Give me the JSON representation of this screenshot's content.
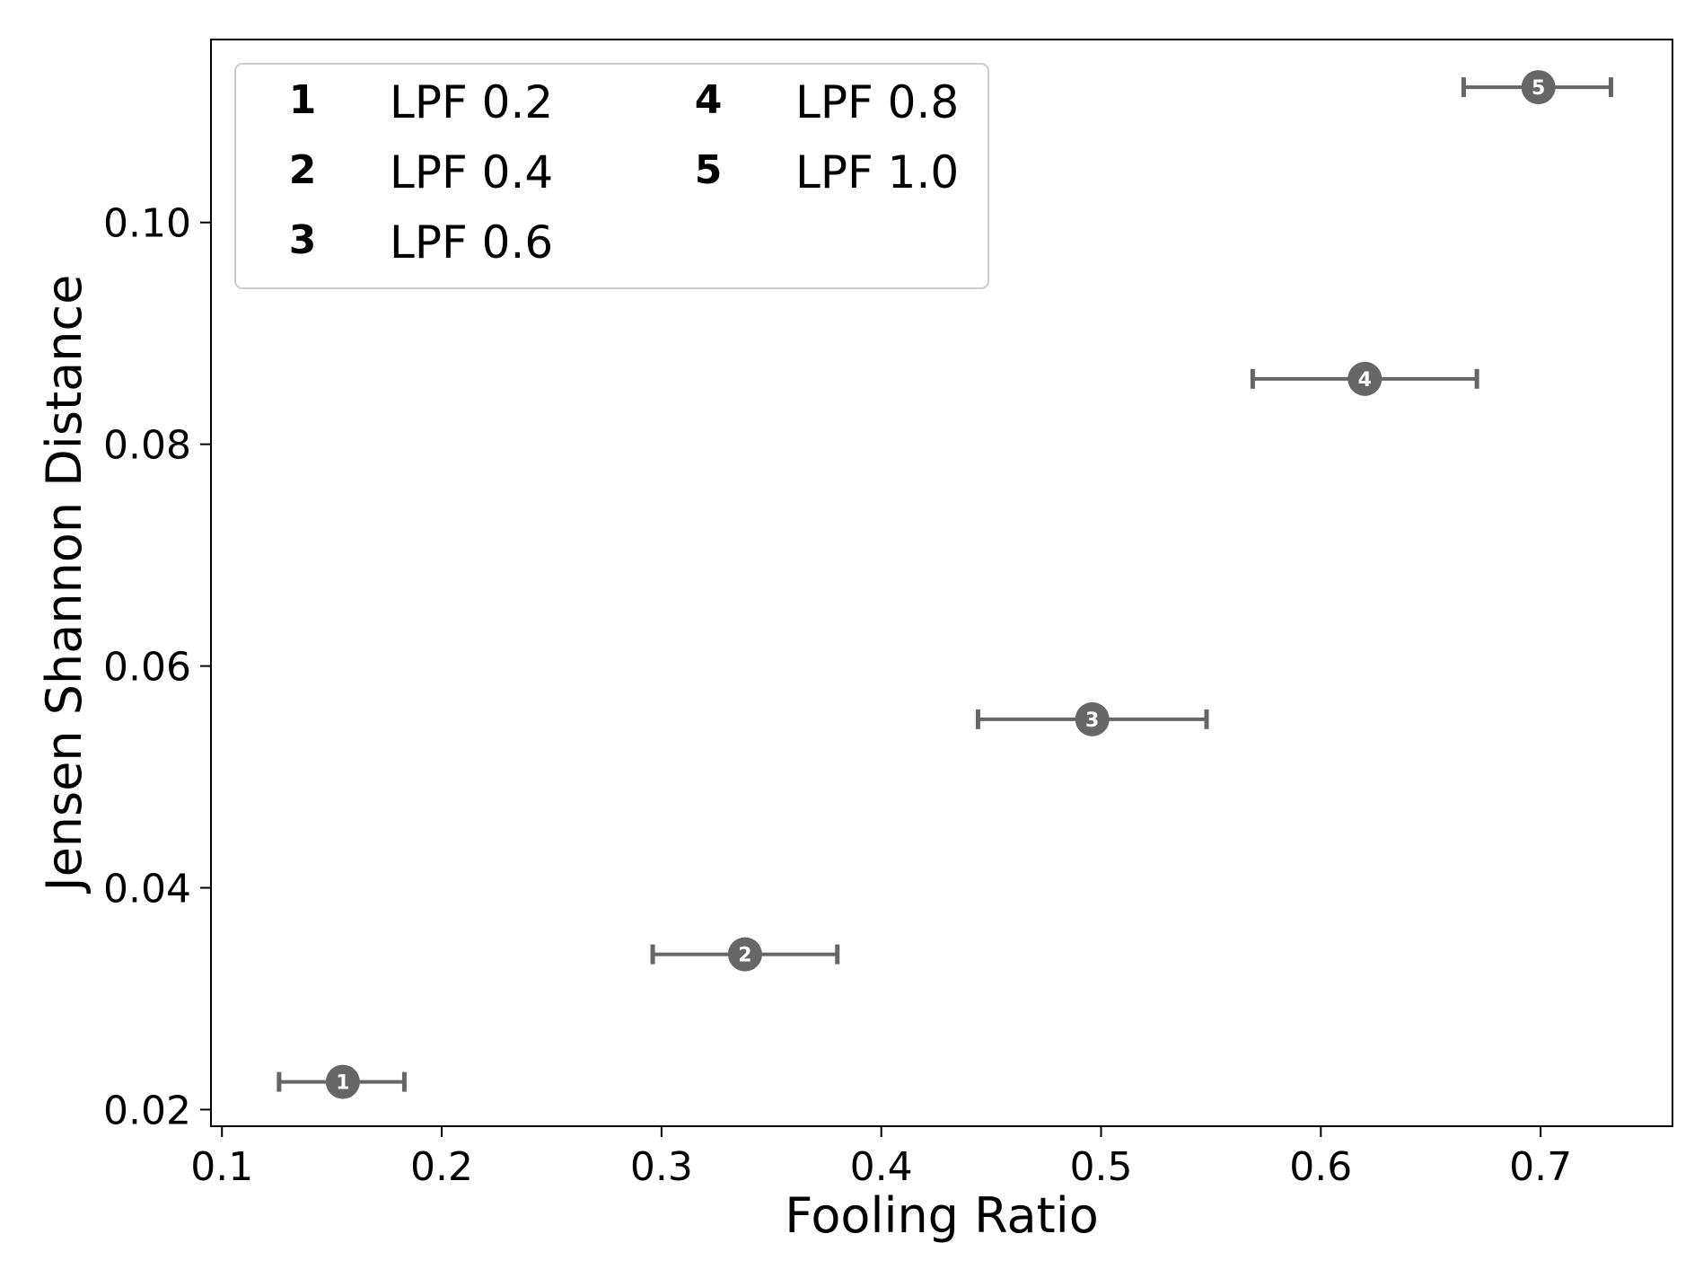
{
  "chart_data": {
    "type": "scatter",
    "xlabel": "Fooling Ratio",
    "ylabel": "Jensen Shannon Distance",
    "xlim": [
      0.095,
      0.76
    ],
    "ylim": [
      0.0185,
      0.1165
    ],
    "xticks": [
      {
        "value": 0.1,
        "label": "0.1"
      },
      {
        "value": 0.2,
        "label": "0.2"
      },
      {
        "value": 0.3,
        "label": "0.3"
      },
      {
        "value": 0.4,
        "label": "0.4"
      },
      {
        "value": 0.5,
        "label": "0.5"
      },
      {
        "value": 0.6,
        "label": "0.6"
      },
      {
        "value": 0.7,
        "label": "0.7"
      }
    ],
    "yticks": [
      {
        "value": 0.02,
        "label": "0.02"
      },
      {
        "value": 0.04,
        "label": "0.04"
      },
      {
        "value": 0.06,
        "label": "0.06"
      },
      {
        "value": 0.08,
        "label": "0.08"
      },
      {
        "value": 0.1,
        "label": "0.10"
      }
    ],
    "grid": false,
    "legend": {
      "position": "top-left",
      "columns": 2
    },
    "marker_color": "#666666",
    "points": [
      {
        "id": "1",
        "label": "LPF 0.2",
        "x": 0.155,
        "y": 0.0225,
        "xerr_low": 0.126,
        "xerr_high": 0.183
      },
      {
        "id": "2",
        "label": "LPF 0.4",
        "x": 0.338,
        "y": 0.034,
        "xerr_low": 0.296,
        "xerr_high": 0.38
      },
      {
        "id": "3",
        "label": "LPF 0.6",
        "x": 0.496,
        "y": 0.0552,
        "xerr_low": 0.444,
        "xerr_high": 0.548
      },
      {
        "id": "4",
        "label": "LPF 0.8",
        "x": 0.62,
        "y": 0.0859,
        "xerr_low": 0.569,
        "xerr_high": 0.671
      },
      {
        "id": "5",
        "label": "LPF 1.0",
        "x": 0.699,
        "y": 0.1122,
        "xerr_low": 0.665,
        "xerr_high": 0.732
      }
    ]
  }
}
